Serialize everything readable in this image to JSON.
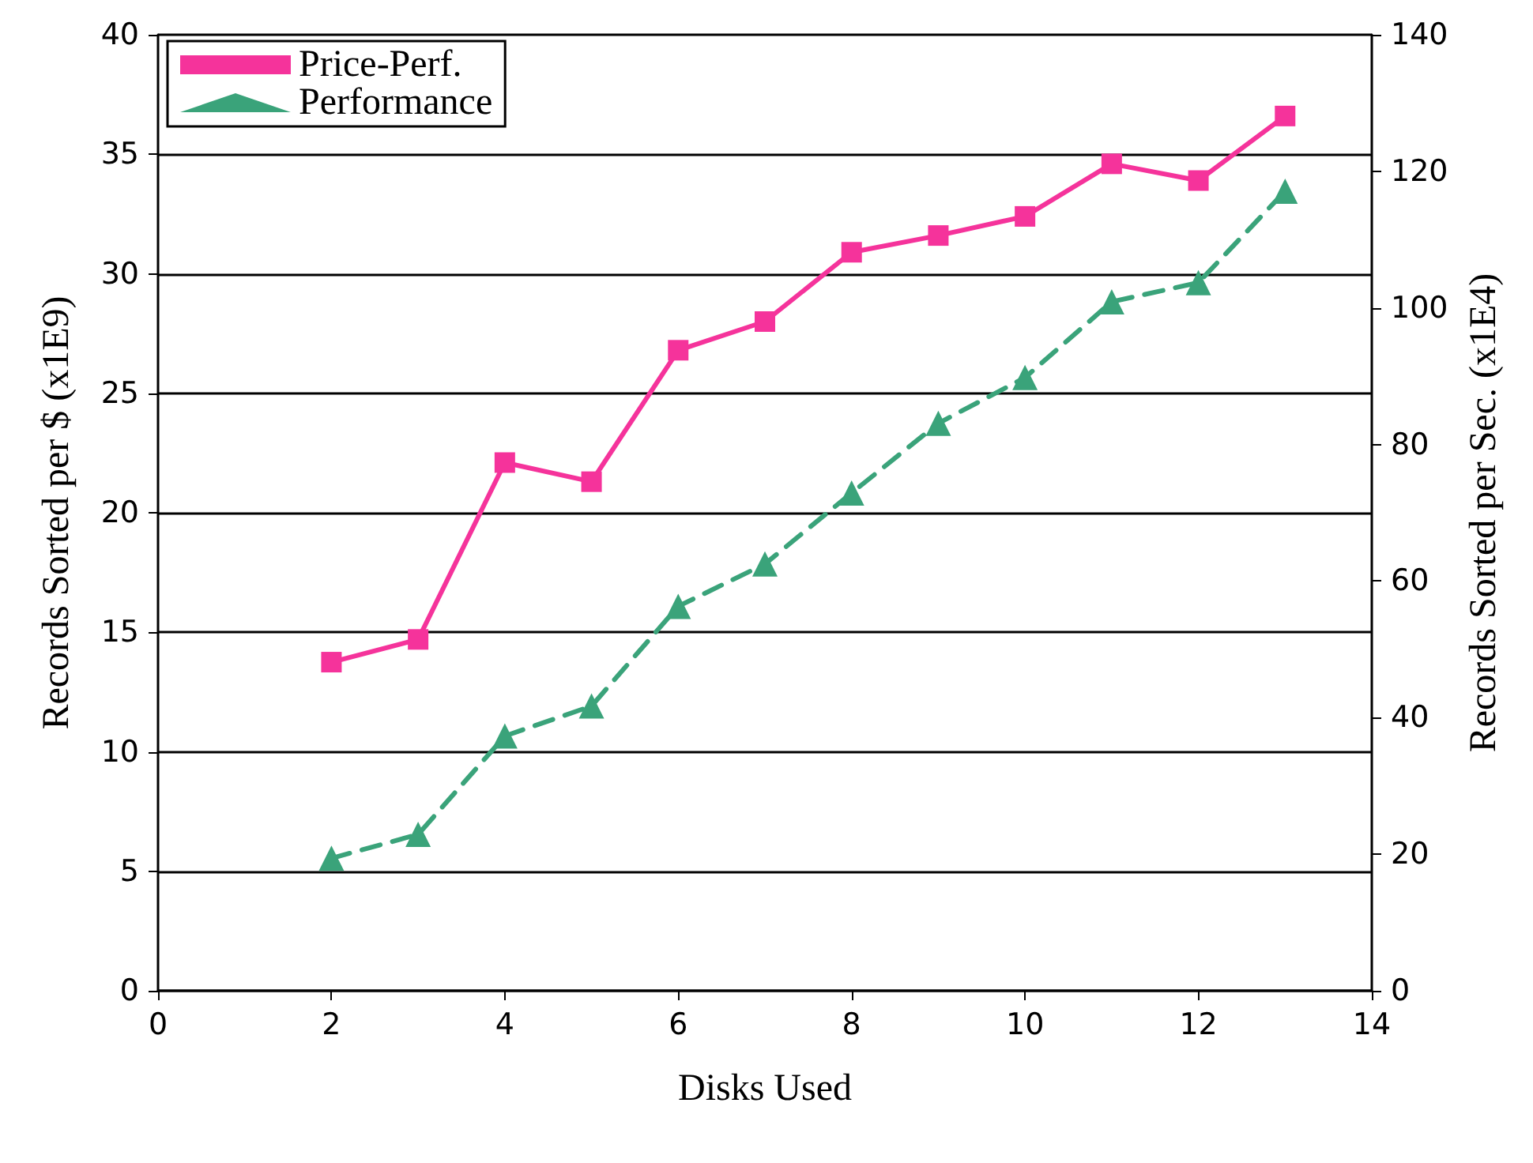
{
  "chart_data": {
    "type": "line",
    "xlabel": "Disks Used",
    "ylabel": "Records Sorted per $ (x1E9)",
    "y2label": "Records Sorted per Sec. (x1E4)",
    "x": [
      2,
      3,
      4,
      5,
      6,
      7,
      8,
      9,
      10,
      11,
      12,
      13
    ],
    "series": [
      {
        "name": "Price-Perf.",
        "color": "#f5339b",
        "marker": "square",
        "line_style": "solid",
        "values": [
          13.75,
          14.7,
          22.1,
          21.3,
          26.8,
          28.0,
          30.9,
          31.6,
          32.4,
          34.6,
          33.9,
          36.6
        ]
      },
      {
        "name": "Performance",
        "color": "#3aa37a",
        "marker": "triangle",
        "line_style": "dashed",
        "axis": "y2",
        "values": [
          19.4,
          22.9,
          37.3,
          41.7,
          56.3,
          62.5,
          72.9,
          83.1,
          89.8,
          100.9,
          103.7,
          117.1
        ]
      }
    ],
    "xlim": [
      0,
      14
    ],
    "xticks": [
      0,
      2,
      4,
      6,
      8,
      10,
      12,
      14
    ],
    "ylim": [
      0,
      40
    ],
    "yticks": [
      0,
      5,
      10,
      15,
      20,
      25,
      30,
      35,
      40
    ],
    "y2lim": [
      0,
      140
    ],
    "y2ticks": [
      0,
      20,
      40,
      60,
      80,
      100,
      120,
      140
    ],
    "grid": "y",
    "legend": "top left"
  }
}
